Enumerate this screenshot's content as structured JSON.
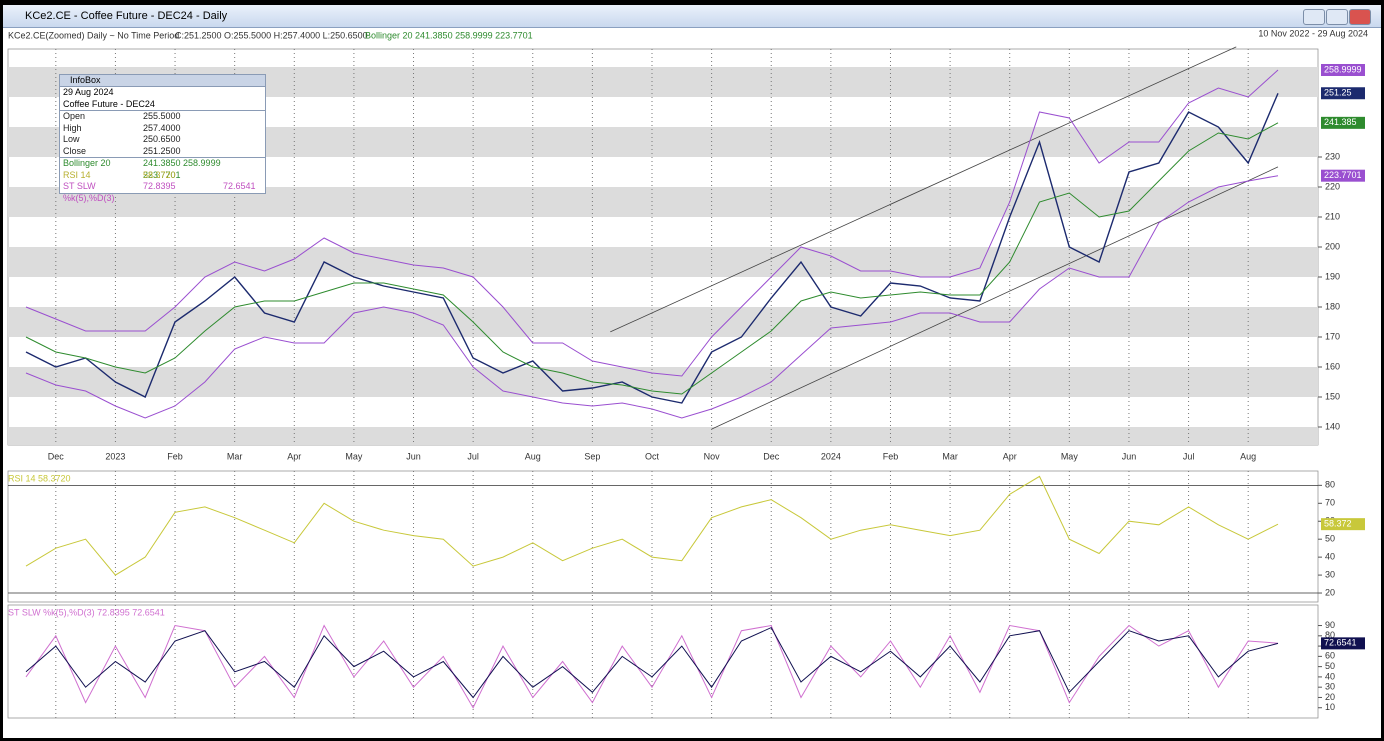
{
  "window": {
    "title": "KCe2.CE - Coffee Future - DEC24 - Daily"
  },
  "header": {
    "symbol": "KCe2.CE(Zoomed) Daily ~ No Time Period",
    "ohlc": "C:251.2500 O:255.5000 H:257.4000 L:250.6500",
    "bollinger": "Bollinger 20 241.3850 258.9999 223.7701",
    "range": "10 Nov 2022  -  29 Aug 2024"
  },
  "infobox": {
    "title": "InfoBox",
    "date": "29 Aug 2024",
    "name": "Coffee Future - DEC24",
    "rows": [
      [
        "Open",
        "255.5000"
      ],
      [
        "High",
        "257.4000"
      ],
      [
        "Low",
        "250.6500"
      ],
      [
        "Close",
        "251.2500"
      ],
      [
        "Bollinger 20",
        "241.3850  258.9999  223.7701"
      ],
      [
        "RSI 14",
        "58.3720"
      ],
      [
        "ST SLW %k(5),%D(3)",
        "72.8395",
        "72.6541"
      ]
    ]
  },
  "chart_data": [
    {
      "type": "line",
      "categories": [
        null,
        "Dec",
        null,
        "2023",
        null,
        "Feb",
        null,
        "Mar",
        null,
        "Apr",
        null,
        "May",
        null,
        "Jun",
        null,
        "Jul",
        null,
        "Aug",
        null,
        "Sep",
        null,
        "Oct",
        null,
        "Nov",
        null,
        "Dec",
        null,
        "2024",
        null,
        "Feb",
        null,
        "Mar",
        null,
        "Apr",
        null,
        "May",
        null,
        "Jun",
        null,
        "Jul",
        null,
        "Aug",
        null
      ],
      "ylim": [
        134,
        266
      ],
      "yticks": [
        140,
        150,
        160,
        170,
        180,
        190,
        200,
        210,
        220,
        230
      ],
      "grid": true,
      "series": [
        {
          "name": "Close",
          "color": "#1c2a6e",
          "values": [
            165,
            160,
            163,
            155,
            150,
            175,
            182,
            190,
            178,
            175,
            195,
            190,
            187,
            185,
            183,
            163,
            158,
            162,
            152,
            153,
            155,
            150,
            148,
            165,
            170,
            183,
            195,
            180,
            177,
            188,
            187,
            183,
            182,
            210,
            235,
            200,
            195,
            225,
            228,
            245,
            240,
            228,
            251.25
          ]
        },
        {
          "name": "Bollinger 20",
          "color": "#2e8b2e",
          "values": [
            170,
            165,
            163,
            160,
            158,
            163,
            172,
            180,
            182,
            182,
            185,
            188,
            188,
            186,
            184,
            175,
            165,
            160,
            158,
            155,
            154,
            152,
            151,
            158,
            165,
            172,
            182,
            185,
            183,
            184,
            185,
            184,
            184,
            195,
            215,
            218,
            210,
            212,
            222,
            232,
            238,
            236,
            241.385
          ]
        },
        {
          "color": "#9a4fd0",
          "values": [
            180,
            176,
            172,
            172,
            172,
            180,
            190,
            195,
            192,
            196,
            203,
            198,
            196,
            194,
            193,
            190,
            180,
            168,
            168,
            162,
            160,
            158,
            157,
            170,
            180,
            190,
            200,
            197,
            192,
            192,
            190,
            190,
            193,
            215,
            245,
            243,
            228,
            235,
            235,
            248,
            253,
            250,
            258.9999
          ]
        },
        {
          "color": "#9a4fd0",
          "values": [
            158,
            154,
            152,
            147,
            143,
            147,
            155,
            166,
            170,
            168,
            168,
            178,
            180,
            178,
            174,
            160,
            152,
            150,
            148,
            147,
            148,
            146,
            143,
            146,
            150,
            155,
            164,
            173,
            174,
            175,
            178,
            178,
            175,
            175,
            186,
            193,
            190,
            190,
            208,
            215,
            220,
            222,
            223.7701
          ]
        }
      ],
      "channel": [
        {
          "x": [
            19.6,
            40.6
          ],
          "values": [
            171.7,
            266.7
          ]
        },
        {
          "x": [
            23,
            42
          ],
          "values": [
            139.3,
            226.7
          ]
        }
      ]
    },
    {
      "type": "line",
      "title": "RSI 14  58.3720",
      "ylim": [
        15,
        88
      ],
      "yticks": [
        20,
        30,
        40,
        50,
        60,
        70,
        80
      ],
      "levels": [
        20,
        80
      ],
      "series": [
        {
          "color": "#c8c83a",
          "values": [
            35,
            45,
            50,
            30,
            40,
            65,
            68,
            62,
            55,
            48,
            70,
            60,
            55,
            52,
            50,
            35,
            40,
            48,
            38,
            45,
            50,
            40,
            38,
            62,
            68,
            72,
            62,
            50,
            55,
            58,
            55,
            52,
            55,
            75,
            85,
            50,
            42,
            60,
            58,
            68,
            58,
            50,
            58.372
          ]
        }
      ]
    },
    {
      "type": "line",
      "title": "ST SLW %k(5),%D(3)  72.8395  72.6541",
      "ylim": [
        0,
        110
      ],
      "yticks": [
        10,
        20,
        30,
        40,
        50,
        60,
        70,
        80,
        90
      ],
      "series": [
        {
          "color": "#d070d0",
          "values": [
            40,
            80,
            15,
            70,
            20,
            90,
            85,
            30,
            60,
            20,
            90,
            40,
            75,
            30,
            60,
            10,
            70,
            20,
            55,
            15,
            70,
            30,
            80,
            20,
            85,
            90,
            20,
            70,
            40,
            75,
            30,
            80,
            25,
            90,
            85,
            15,
            60,
            90,
            70,
            85,
            30,
            75,
            72.8395
          ]
        },
        {
          "color": "#101050",
          "values": [
            45,
            70,
            30,
            55,
            35,
            75,
            85,
            45,
            55,
            30,
            80,
            50,
            65,
            40,
            55,
            20,
            60,
            30,
            50,
            25,
            60,
            40,
            70,
            30,
            75,
            88,
            35,
            60,
            45,
            65,
            40,
            70,
            35,
            80,
            85,
            25,
            55,
            85,
            75,
            80,
            40,
            65,
            72.6541
          ]
        }
      ]
    }
  ]
}
